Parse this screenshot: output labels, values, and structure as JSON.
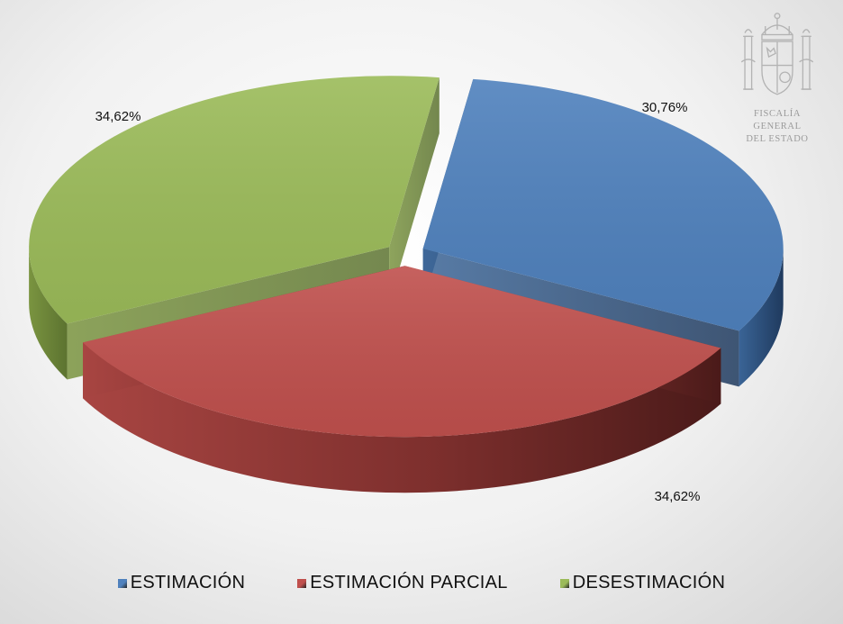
{
  "chart_data": {
    "type": "pie",
    "style": "3d-exploded",
    "categories": [
      "ESTIMACIÓN",
      "ESTIMACIÓN PARCIAL",
      "DESESTIMACIÓN"
    ],
    "values": [
      30.76,
      34.62,
      34.62
    ],
    "data_labels": [
      "30,76%",
      "34,62%",
      "34,62%"
    ],
    "colors": [
      "#4f81bd",
      "#c0504d",
      "#9bbb59"
    ],
    "legend_position": "bottom"
  },
  "watermark": {
    "emblem_icon": "coat-of-arms-icon",
    "text_line1": "FISCALÍA GENERAL",
    "text_line2": "DEL ESTADO"
  }
}
